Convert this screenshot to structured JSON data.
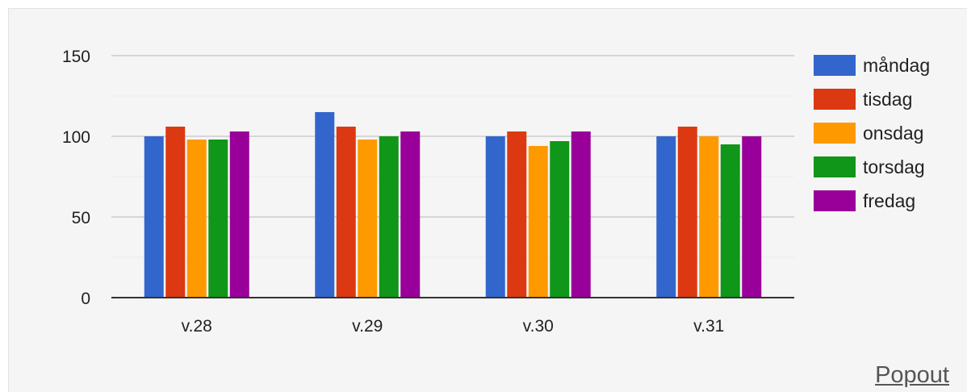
{
  "chart_data": {
    "type": "bar",
    "title": "",
    "xlabel": "",
    "ylabel": "",
    "ylim": [
      0,
      150
    ],
    "yticks": [
      "0",
      "50",
      "100",
      "150"
    ],
    "categories": [
      "v.28",
      "v.29",
      "v.30",
      "v.31"
    ],
    "legend_position": "right",
    "grid": true,
    "series": [
      {
        "name": "måndag",
        "color": "#3366cc",
        "values": [
          100,
          115,
          100,
          100
        ]
      },
      {
        "name": "tisdag",
        "color": "#dc3912",
        "values": [
          106,
          106,
          103,
          106
        ]
      },
      {
        "name": "onsdag",
        "color": "#ff9900",
        "values": [
          98,
          98,
          94,
          100
        ]
      },
      {
        "name": "torsdag",
        "color": "#109618",
        "values": [
          98,
          100,
          97,
          95
        ]
      },
      {
        "name": "fredag",
        "color": "#990099",
        "values": [
          103,
          103,
          103,
          100
        ]
      }
    ]
  },
  "links": {
    "popout": "Popout"
  }
}
